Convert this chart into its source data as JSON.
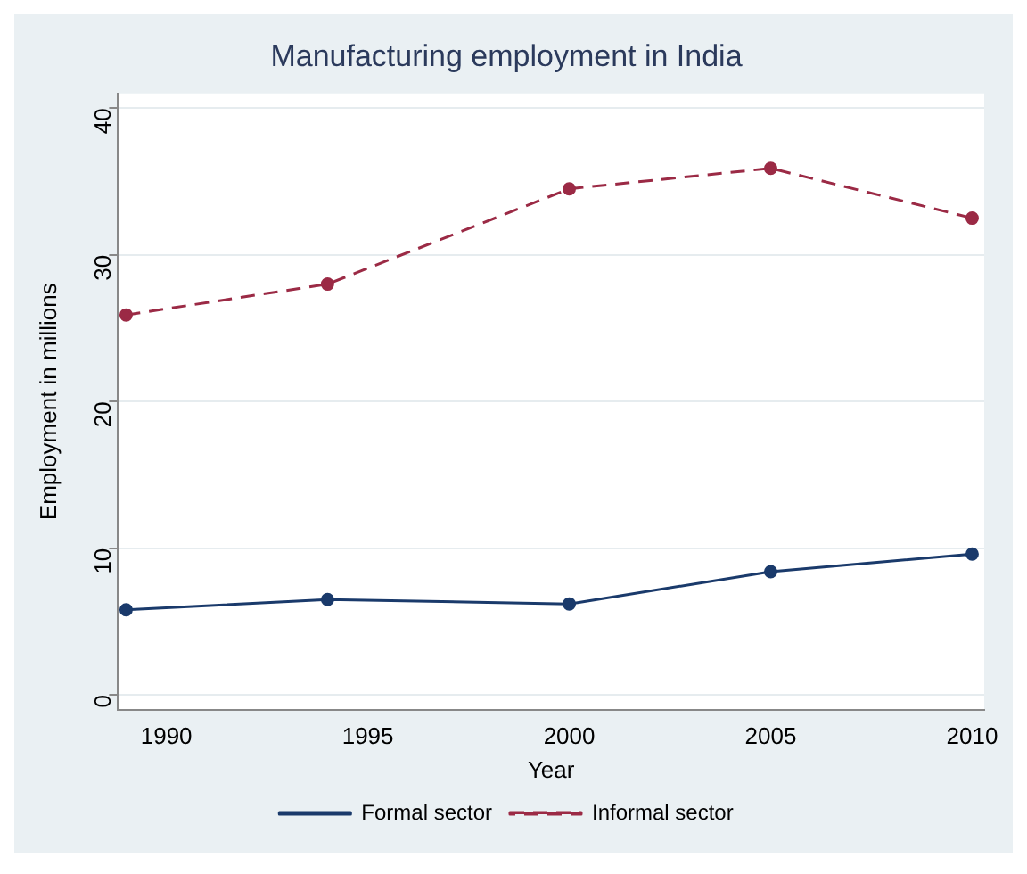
{
  "chart_data": {
    "type": "line",
    "title": "Manufacturing employment in India",
    "xlabel": "Year",
    "ylabel": "Employment in millions",
    "x": [
      1989,
      1994,
      2000,
      2005,
      2010
    ],
    "series": [
      {
        "name": "Formal sector",
        "color": "#1a3a6b",
        "values": [
          5.8,
          6.5,
          6.2,
          8.4,
          9.6
        ],
        "line_style": "solid"
      },
      {
        "name": "Informal sector",
        "color": "#9b2a45",
        "values": [
          25.9,
          28.0,
          34.5,
          35.9,
          32.5
        ],
        "line_style": "dashed"
      }
    ],
    "xlim": [
      1988.8,
      2010.3
    ],
    "xticks": [
      1990,
      1995,
      2000,
      2005,
      2010
    ],
    "ylim": [
      -1,
      41
    ],
    "yticks": [
      0,
      10,
      20,
      30,
      40
    ],
    "grid": "y",
    "legend": "bottom",
    "marker": "circle"
  }
}
